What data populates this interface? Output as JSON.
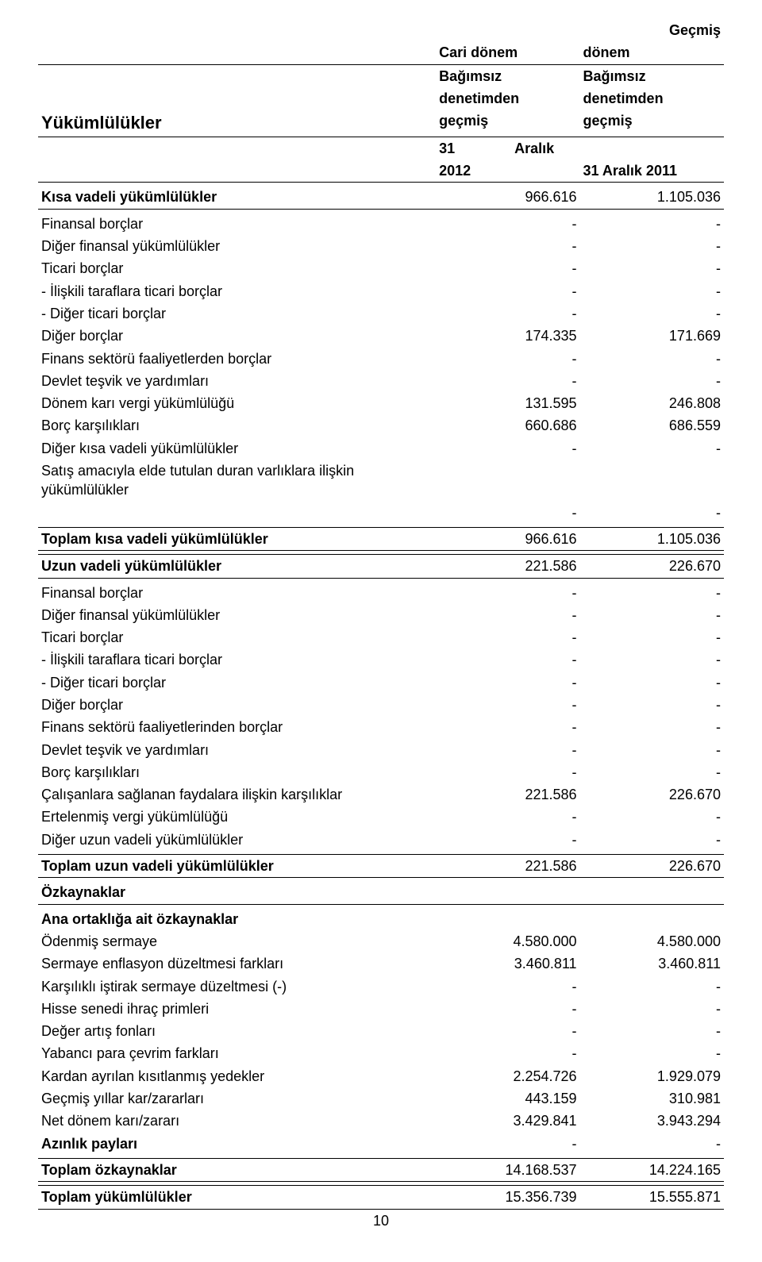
{
  "header": {
    "title": "Yükümlülükler",
    "col1_line1": "Cari dönem",
    "col1_line2": "Bağımsız",
    "col1_line3": "denetimden",
    "col1_line4": "geçmiş",
    "col1_line5a": "31",
    "col1_line5b": "Aralık",
    "col1_line6": "2012",
    "col2_line0": "Geçmiş",
    "col2_line1": "dönem",
    "col2_line2": "Bağımsız",
    "col2_line3": "denetimden",
    "col2_line4": "geçmiş",
    "col2_line6": "31 Aralık 2011"
  },
  "kisa_vadeli": {
    "heading": "Kısa vadeli yükümlülükler",
    "heading_v1": "966.616",
    "heading_v2": "1.105.036",
    "rows": [
      {
        "label": "Finansal borçlar",
        "v1": "-",
        "v2": "-"
      },
      {
        "label": "Diğer finansal yükümlülükler",
        "v1": "-",
        "v2": "-"
      },
      {
        "label": "Ticari borçlar",
        "v1": "-",
        "v2": "-"
      },
      {
        "label": "- İlişkili taraflara ticari borçlar",
        "v1": "-",
        "v2": "-"
      },
      {
        "label": "- Diğer ticari borçlar",
        "v1": "-",
        "v2": "-"
      },
      {
        "label": "Diğer borçlar",
        "v1": "174.335",
        "v2": "171.669"
      },
      {
        "label": "Finans sektörü faaliyetlerden borçlar",
        "v1": "-",
        "v2": "-"
      },
      {
        "label": "Devlet teşvik ve yardımları",
        "v1": "-",
        "v2": "-"
      },
      {
        "label": "Dönem karı vergi yükümlülüğü",
        "v1": "131.595",
        "v2": "246.808"
      },
      {
        "label": "Borç karşılıkları",
        "v1": "660.686",
        "v2": "686.559"
      },
      {
        "label": "Diğer kısa vadeli yükümlülükler",
        "v1": "-",
        "v2": "-"
      },
      {
        "label": "Satış amacıyla elde tutulan duran varlıklara ilişkin yükümlülükler",
        "v1": "",
        "v2": ""
      }
    ],
    "tail_v1": "-",
    "tail_v2": "-",
    "total_label": "Toplam kısa vadeli yükümlülükler",
    "total_v1": "966.616",
    "total_v2": "1.105.036"
  },
  "uzun_vadeli": {
    "heading": "Uzun vadeli yükümlülükler",
    "heading_v1": "221.586",
    "heading_v2": "226.670",
    "rows": [
      {
        "label": "Finansal borçlar",
        "v1": "-",
        "v2": "-"
      },
      {
        "label": "Diğer finansal yükümlülükler",
        "v1": "-",
        "v2": "-"
      },
      {
        "label": "Ticari borçlar",
        "v1": "-",
        "v2": "-"
      },
      {
        "label": "- İlişkili taraflara ticari borçlar",
        "v1": "-",
        "v2": "-"
      },
      {
        "label": "- Diğer ticari borçlar",
        "v1": "-",
        "v2": "-"
      },
      {
        "label": "Diğer borçlar",
        "v1": "-",
        "v2": "-"
      },
      {
        "label": "Finans sektörü faaliyetlerinden borçlar",
        "v1": "-",
        "v2": "-"
      },
      {
        "label": "Devlet teşvik ve yardımları",
        "v1": "-",
        "v2": "-"
      },
      {
        "label": "Borç karşılıkları",
        "v1": "-",
        "v2": "-"
      },
      {
        "label": "Çalışanlara sağlanan faydalara ilişkin karşılıklar",
        "v1": "221.586",
        "v2": "226.670"
      },
      {
        "label": "Ertelenmiş vergi yükümlülüğü",
        "v1": "-",
        "v2": "-"
      },
      {
        "label": "Diğer uzun vadeli yükümlülükler",
        "v1": "-",
        "v2": "-"
      }
    ],
    "total_label": "Toplam uzun vadeli yükümlülükler",
    "total_v1": "221.586",
    "total_v2": "226.670"
  },
  "ozkaynaklar": {
    "section_label": "Özkaynaklar",
    "sub_label": "Ana ortaklığa ait özkaynaklar",
    "rows": [
      {
        "label": "Ödenmiş sermaye",
        "v1": "4.580.000",
        "v2": "4.580.000"
      },
      {
        "label": "Sermaye enflasyon düzeltmesi farkları",
        "v1": "3.460.811",
        "v2": "3.460.811"
      },
      {
        "label": "Karşılıklı iştirak sermaye düzeltmesi (-)",
        "v1": "-",
        "v2": "-"
      },
      {
        "label": "Hisse senedi ihraç primleri",
        "v1": "-",
        "v2": "-"
      },
      {
        "label": "Değer artış fonları",
        "v1": "-",
        "v2": "-"
      },
      {
        "label": "Yabancı para çevrim farkları",
        "v1": "-",
        "v2": "-"
      },
      {
        "label": "Kardan ayrılan kısıtlanmış yedekler",
        "v1": "2.254.726",
        "v2": "1.929.079"
      },
      {
        "label": "Geçmiş yıllar kar/zararları",
        "v1": "443.159",
        "v2": "310.981"
      },
      {
        "label": "Net dönem karı/zararı",
        "v1": "3.429.841",
        "v2": "3.943.294"
      }
    ],
    "azinlik_label": "Azınlık payları",
    "azinlik_v1": "-",
    "azinlik_v2": "-",
    "total_label": "Toplam özkaynaklar",
    "total_v1": "14.168.537",
    "total_v2": "14.224.165"
  },
  "grand_total": {
    "label": "Toplam yükümlülükler",
    "v1": "15.356.739",
    "v2": "15.555.871"
  },
  "page_number": "10"
}
